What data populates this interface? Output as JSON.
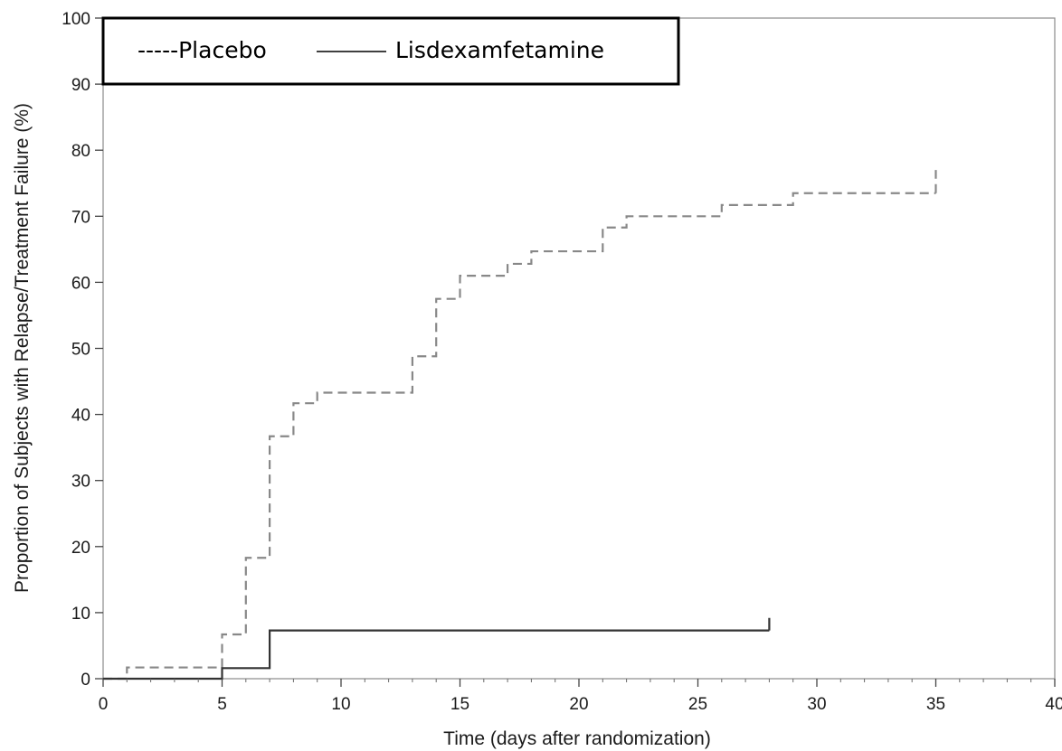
{
  "chart_data": {
    "type": "line",
    "xlabel": "Time (days after randomization)",
    "ylabel": "Proportion of Subjects with Relapse/Treatment Failure (%)",
    "xlim": [
      0,
      40
    ],
    "ylim": [
      0,
      100
    ],
    "xticks": [
      0,
      5,
      10,
      15,
      20,
      25,
      30,
      35,
      40
    ],
    "yticks": [
      0,
      10,
      20,
      30,
      40,
      50,
      60,
      70,
      80,
      90,
      100
    ],
    "xtick_labels": [
      "0",
      "5",
      "10",
      "15",
      "20",
      "25",
      "30",
      "35",
      "40"
    ],
    "ytick_labels": [
      "0",
      "10",
      "20",
      "30",
      "40",
      "50",
      "60",
      "70",
      "80",
      "90",
      "100"
    ],
    "step": true,
    "grid": false,
    "legend": {
      "position": "top-left",
      "border": true
    },
    "series": [
      {
        "name": "-----Placebo",
        "style": "dashed",
        "color": "#888888",
        "x": [
          0,
          1,
          5,
          6,
          7,
          8,
          9,
          13,
          14,
          15,
          17,
          18,
          21,
          22,
          26,
          29,
          35
        ],
        "y": [
          0,
          1.7,
          6.7,
          18.3,
          36.7,
          41.7,
          43.3,
          48.8,
          57.5,
          61.0,
          62.8,
          64.7,
          68.3,
          70.0,
          71.7,
          73.5,
          73.5
        ],
        "end_tick": 77
      },
      {
        "name": "Lisdexamfetamine",
        "style": "solid",
        "color": "#333333",
        "x": [
          0,
          5,
          7,
          28
        ],
        "y": [
          0,
          1.6,
          7.3,
          7.3
        ],
        "end_tick": 9.2
      }
    ]
  }
}
